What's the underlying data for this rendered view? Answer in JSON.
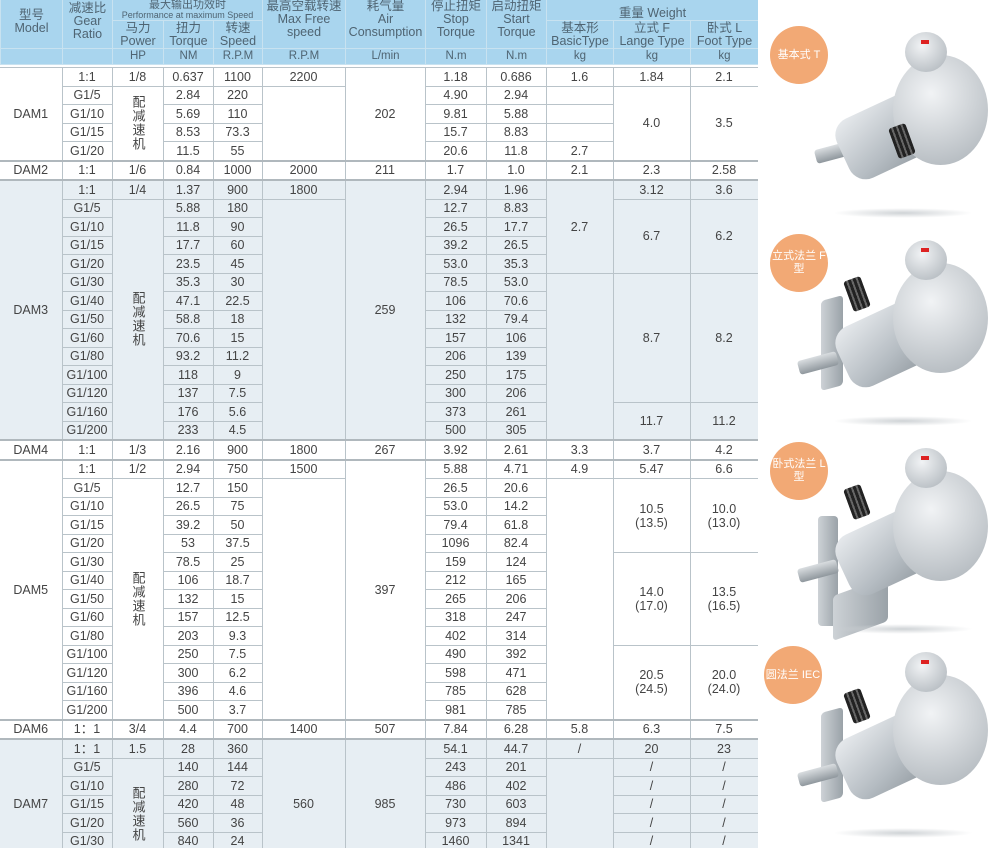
{
  "header": {
    "model": "型号\nModel",
    "gear_ratio": "减速比\nGear\nRatio",
    "performance_cn": "最大输出功效时",
    "performance_en": "Performance at maximum Speed",
    "power": "马力\nPower",
    "torque": "扭力\nTorque",
    "speed": "转速\nSpeed",
    "max_free_speed": "最高空载转速\nMax Free\nspeed",
    "air_consumption": "耗气量\nAir\nConsumption",
    "stop_torque": "停止扭矩\nStop\nTorque",
    "start_torque": "启动扭矩\nStart\nTorque",
    "weight": "重量 Weight",
    "basic_type": "基本形\nBasicType",
    "lange_type": "立式 F\nLange Type",
    "foot_type": "卧式 L\nFoot Type",
    "units": [
      "HP",
      "NM",
      "R.P.M",
      "R.P.M",
      "L/min",
      "N.m",
      "N.m",
      "kg",
      "kg",
      "kg"
    ]
  },
  "groups": [
    {
      "model": "DAM1",
      "shade": "white",
      "rows": [
        [
          "1:1",
          "0.637",
          "1100",
          "1.18",
          "0.686"
        ],
        [
          "G1/5",
          "2.84",
          "220",
          "4.90",
          "2.94"
        ],
        [
          "G1/10",
          "5.69",
          "110",
          "9.81",
          "5.88"
        ],
        [
          "G1/15",
          "8.53",
          "73.3",
          "15.7",
          "8.83"
        ],
        [
          "G1/20",
          "11.5",
          "55",
          "20.6",
          "11.8"
        ]
      ],
      "power": [
        {
          "v": "1/8",
          "n": 1
        },
        {
          "v": "配减速机",
          "n": 4,
          "vertical": true
        }
      ],
      "max_free": [
        {
          "v": "2200",
          "n": 1
        },
        {
          "v": "",
          "n": 4
        }
      ],
      "air": [
        {
          "v": "202",
          "n": 5
        }
      ],
      "basic": [
        {
          "v": "1.6",
          "n": 1
        },
        {
          "v": "",
          "n": 1
        },
        {
          "v": "",
          "n": 1
        },
        {
          "v": "",
          "n": 1
        },
        {
          "v": "2.7",
          "n": 1
        }
      ],
      "lange": [
        {
          "v": "1.84",
          "n": 1
        },
        {
          "v": "4.0",
          "n": 4
        }
      ],
      "foot": [
        {
          "v": "2.1",
          "n": 1
        },
        {
          "v": "3.5",
          "n": 4
        }
      ]
    },
    {
      "model": "DAM2",
      "shade": "white",
      "rows": [
        [
          "1:1",
          "0.84",
          "1000",
          "1.7",
          "1.0"
        ]
      ],
      "power": [
        {
          "v": "1/6",
          "n": 1
        }
      ],
      "max_free": [
        {
          "v": "2000",
          "n": 1
        }
      ],
      "air": [
        {
          "v": "211",
          "n": 1
        }
      ],
      "basic": [
        {
          "v": "2.1",
          "n": 1
        }
      ],
      "lange": [
        {
          "v": "2.3",
          "n": 1
        }
      ],
      "foot": [
        {
          "v": "2.58",
          "n": 1
        }
      ]
    },
    {
      "model": "DAM3",
      "shade": "blue",
      "rows": [
        [
          "1:1",
          "1.37",
          "900",
          "2.94",
          "1.96"
        ],
        [
          "G1/5",
          "5.88",
          "180",
          "12.7",
          "8.83"
        ],
        [
          "G1/10",
          "11.8",
          "90",
          "26.5",
          "17.7"
        ],
        [
          "G1/15",
          "17.7",
          "60",
          "39.2",
          "26.5"
        ],
        [
          "G1/20",
          "23.5",
          "45",
          "53.0",
          "35.3"
        ],
        [
          "G1/30",
          "35.3",
          "30",
          "78.5",
          "53.0"
        ],
        [
          "G1/40",
          "47.1",
          "22.5",
          "106",
          "70.6"
        ],
        [
          "G1/50",
          "58.8",
          "18",
          "132",
          "79.4"
        ],
        [
          "G1/60",
          "70.6",
          "15",
          "157",
          "106"
        ],
        [
          "G1/80",
          "93.2",
          "11.2",
          "206",
          "139"
        ],
        [
          "G1/100",
          "118",
          "9",
          "250",
          "175"
        ],
        [
          "G1/120",
          "137",
          "7.5",
          "300",
          "206"
        ],
        [
          "G1/160",
          "176",
          "5.6",
          "373",
          "261"
        ],
        [
          "G1/200",
          "233",
          "4.5",
          "500",
          "305"
        ]
      ],
      "power": [
        {
          "v": "1/4",
          "n": 1
        },
        {
          "v": "配减速机",
          "n": 13,
          "vertical": true
        }
      ],
      "max_free": [
        {
          "v": "1800",
          "n": 1
        },
        {
          "v": "",
          "n": 13
        }
      ],
      "air": [
        {
          "v": "259",
          "n": 14
        }
      ],
      "basic": [
        {
          "v": "2.7",
          "n": 5
        },
        {
          "v": "",
          "n": 9
        }
      ],
      "lange": [
        {
          "v": "3.12",
          "n": 1
        },
        {
          "v": "6.7",
          "n": 4
        },
        {
          "v": "8.7",
          "n": 7
        },
        {
          "v": "11.7",
          "n": 2
        }
      ],
      "foot": [
        {
          "v": "3.6",
          "n": 1
        },
        {
          "v": "6.2",
          "n": 4
        },
        {
          "v": "8.2",
          "n": 7
        },
        {
          "v": "11.2",
          "n": 2
        }
      ]
    },
    {
      "model": "DAM4",
      "shade": "white",
      "rows": [
        [
          "1:1",
          "2.16",
          "900",
          "3.92",
          "2.61"
        ]
      ],
      "power": [
        {
          "v": "1/3",
          "n": 1
        }
      ],
      "max_free": [
        {
          "v": "1800",
          "n": 1
        }
      ],
      "air": [
        {
          "v": "267",
          "n": 1
        }
      ],
      "basic": [
        {
          "v": "3.3",
          "n": 1
        }
      ],
      "lange": [
        {
          "v": "3.7",
          "n": 1
        }
      ],
      "foot": [
        {
          "v": "4.2",
          "n": 1
        }
      ]
    },
    {
      "model": "DAM5",
      "shade": "white",
      "rows": [
        [
          "1:1",
          "2.94",
          "750",
          "5.88",
          "4.71"
        ],
        [
          "G1/5",
          "12.7",
          "150",
          "26.5",
          "20.6"
        ],
        [
          "G1/10",
          "26.5",
          "75",
          "53.0",
          "14.2"
        ],
        [
          "G1/15",
          "39.2",
          "50",
          "79.4",
          "61.8"
        ],
        [
          "G1/20",
          "53",
          "37.5",
          "1096",
          "82.4"
        ],
        [
          "G1/30",
          "78.5",
          "25",
          "159",
          "124"
        ],
        [
          "G1/40",
          "106",
          "18.7",
          "212",
          "165"
        ],
        [
          "G1/50",
          "132",
          "15",
          "265",
          "206"
        ],
        [
          "G1/60",
          "157",
          "12.5",
          "318",
          "247"
        ],
        [
          "G1/80",
          "203",
          "9.3",
          "402",
          "314"
        ],
        [
          "G1/100",
          "250",
          "7.5",
          "490",
          "392"
        ],
        [
          "G1/120",
          "300",
          "6.2",
          "598",
          "471"
        ],
        [
          "G1/160",
          "396",
          "4.6",
          "785",
          "628"
        ],
        [
          "G1/200",
          "500",
          "3.7",
          "981",
          "785"
        ]
      ],
      "power": [
        {
          "v": "1/2",
          "n": 1
        },
        {
          "v": "配减速机",
          "n": 13,
          "vertical": true
        }
      ],
      "max_free": [
        {
          "v": "1500",
          "n": 1
        },
        {
          "v": "",
          "n": 13
        }
      ],
      "air": [
        {
          "v": "397",
          "n": 14
        }
      ],
      "basic": [
        {
          "v": "4.9",
          "n": 1
        },
        {
          "v": "",
          "n": 13
        }
      ],
      "lange": [
        {
          "v": "5.47",
          "n": 1
        },
        {
          "v": "10.5\n(13.5)",
          "n": 4
        },
        {
          "v": "14.0\n(17.0)",
          "n": 5
        },
        {
          "v": "20.5\n(24.5)",
          "n": 4
        }
      ],
      "foot": [
        {
          "v": "6.6",
          "n": 1
        },
        {
          "v": "10.0\n(13.0)",
          "n": 4
        },
        {
          "v": "13.5\n(16.5)",
          "n": 5
        },
        {
          "v": "20.0\n(24.0)",
          "n": 4
        }
      ]
    },
    {
      "model": "DAM6",
      "shade": "white",
      "rows": [
        [
          "1：1",
          "4.4",
          "700",
          "7.84",
          "6.28"
        ]
      ],
      "power": [
        {
          "v": "3/4",
          "n": 1
        }
      ],
      "max_free": [
        {
          "v": "1400",
          "n": 1
        }
      ],
      "air": [
        {
          "v": "507",
          "n": 1
        }
      ],
      "basic": [
        {
          "v": "5.8",
          "n": 1
        }
      ],
      "lange": [
        {
          "v": "6.3",
          "n": 1
        }
      ],
      "foot": [
        {
          "v": "7.5",
          "n": 1
        }
      ]
    },
    {
      "model": "DAM7",
      "shade": "blue",
      "rows": [
        [
          "1：1",
          "28",
          "360",
          "54.1",
          "44.7"
        ],
        [
          "G1/5",
          "140",
          "144",
          "243",
          "201"
        ],
        [
          "G1/10",
          "280",
          "72",
          "486",
          "402"
        ],
        [
          "G1/15",
          "420",
          "48",
          "730",
          "603"
        ],
        [
          "G1/20",
          "560",
          "36",
          "973",
          "894"
        ],
        [
          "G1/30",
          "840",
          "24",
          "1460",
          "1341"
        ],
        [
          "",
          "",
          "",
          "",
          ""
        ]
      ],
      "power": [
        {
          "v": "1.5",
          "n": 1
        },
        {
          "v": "配减速机",
          "n": 6,
          "vertical": true
        }
      ],
      "max_free": [
        {
          "v": "560",
          "n": 7
        }
      ],
      "air": [
        {
          "v": "985",
          "n": 7
        }
      ],
      "basic": [
        {
          "v": "/",
          "n": 1
        },
        {
          "v": "",
          "n": 6
        }
      ],
      "lange": [
        {
          "v": "20",
          "n": 1
        },
        {
          "v": "/",
          "n": 1
        },
        {
          "v": "/",
          "n": 1
        },
        {
          "v": "/",
          "n": 1
        },
        {
          "v": "/",
          "n": 1
        },
        {
          "v": "/",
          "n": 1
        },
        {
          "v": "",
          "n": 1
        }
      ],
      "foot": [
        {
          "v": "23",
          "n": 1
        },
        {
          "v": "/",
          "n": 1
        },
        {
          "v": "/",
          "n": 1
        },
        {
          "v": "/",
          "n": 1
        },
        {
          "v": "/",
          "n": 1
        },
        {
          "v": "/",
          "n": 1
        },
        {
          "v": "",
          "n": 1
        }
      ]
    }
  ],
  "product_images": [
    {
      "badge": "基本式\nT",
      "icon": "basic-type-motor"
    },
    {
      "badge": "立式法兰\nF型",
      "icon": "flange-type-motor"
    },
    {
      "badge": "卧式法兰\nL型",
      "icon": "foot-type-motor"
    },
    {
      "badge": "圆法兰\nIEC",
      "icon": "iec-round-flange-motor"
    }
  ],
  "colors": {
    "header_bg": "#a9d5ee",
    "shaded_row_bg": "#e7eef3",
    "badge": "#f2a975",
    "text": "#444444"
  }
}
